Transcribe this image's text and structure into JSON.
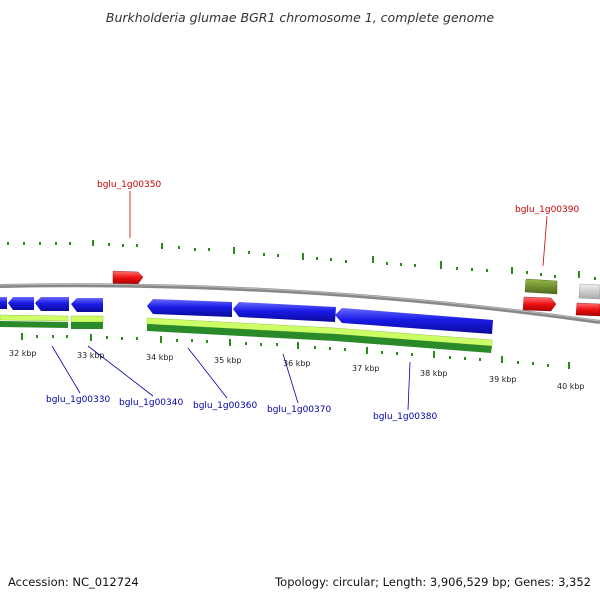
{
  "title": "Burkholderia glumae BGR1 chromosome 1, complete genome",
  "footer": {
    "accession": "Accession: NC_012724",
    "summary": "Topology: circular; Length: 3,906,529 bp; Genes: 3,352"
  },
  "scale_labels": [
    "32 kbp",
    "33 kbp",
    "34 kbp",
    "35 kbp",
    "36 kbp",
    "37 kbp",
    "38 kbp",
    "39 kbp",
    "40 kbp"
  ],
  "gene_labels": {
    "bglu_1g00350": "bglu_1g00350",
    "bglu_1g00390": "bglu_1g00390",
    "bglu_1g00330": "bglu_1g00330",
    "bglu_1g00340": "bglu_1g00340",
    "bglu_1g00360": "bglu_1g00360",
    "bglu_1g00370": "bglu_1g00370",
    "bglu_1g00380": "bglu_1g00380"
  },
  "colors": {
    "forward_gene": "#ee1111",
    "reverse_gene": "#1a1ae6",
    "gc_tick": "#2a8a1a",
    "backbone": "#888888",
    "label_red": "#cc0000",
    "label_blue": "#0000aa",
    "orf_light": "#ccff66",
    "orf_dark": "#2a8a2a",
    "olive": "#6a8a2a"
  }
}
